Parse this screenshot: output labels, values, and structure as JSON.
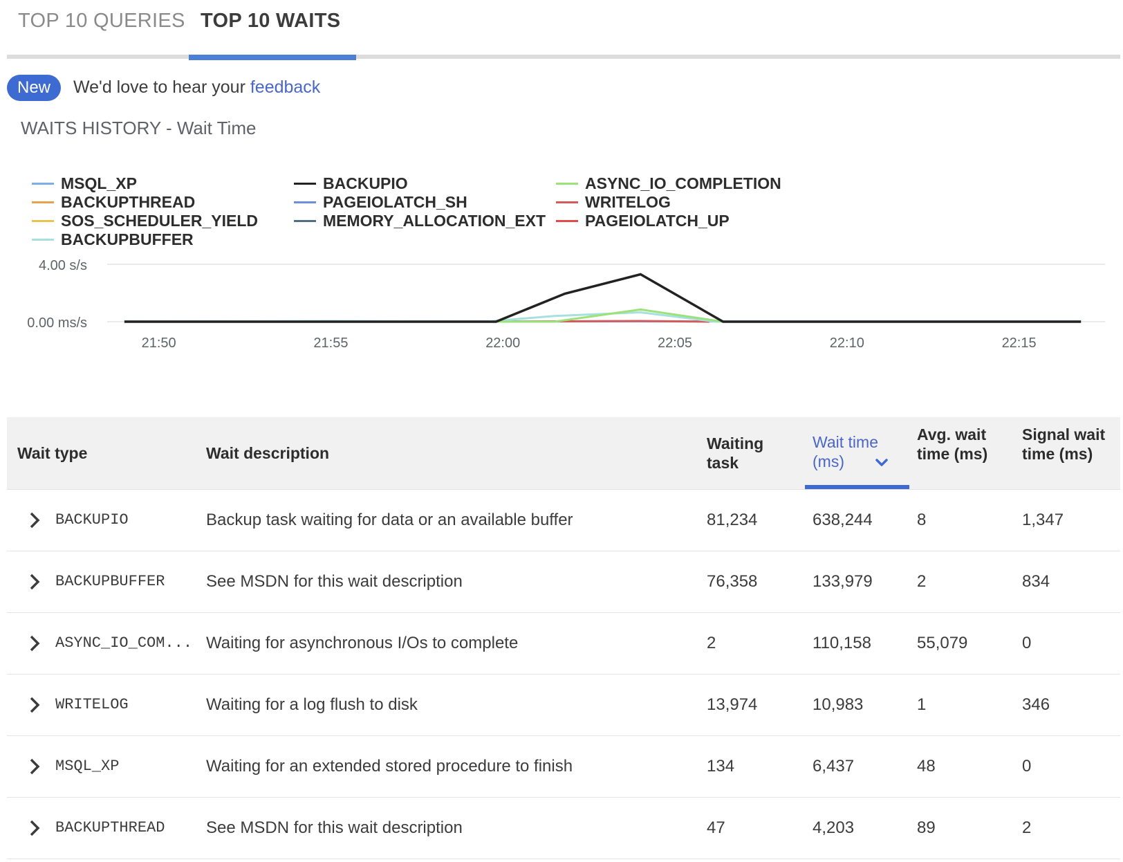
{
  "tabs": [
    {
      "label": "TOP 10 QUERIES"
    },
    {
      "label": "TOP 10 WAITS"
    }
  ],
  "banner": {
    "badge": "New",
    "text": "We'd love to hear your ",
    "link": "feedback"
  },
  "section_title": "WAITS HISTORY - Wait Time",
  "legend": [
    {
      "name": "MSQL_XP",
      "color": "#7baee8"
    },
    {
      "name": "BACKUPTHREAD",
      "color": "#e8a24f"
    },
    {
      "name": "SOS_SCHEDULER_YIELD",
      "color": "#e8c44f"
    },
    {
      "name": "BACKUPBUFFER",
      "color": "#a8e0de"
    },
    {
      "name": "BACKUPIO",
      "color": "#222222"
    },
    {
      "name": "PAGEIOLATCH_SH",
      "color": "#6a8ee0"
    },
    {
      "name": "MEMORY_ALLOCATION_EXT",
      "color": "#4f6f86"
    },
    {
      "name": "ASYNC_IO_COMPLETION",
      "color": "#9be27a"
    },
    {
      "name": "WRITELOG",
      "color": "#d25b5b"
    },
    {
      "name": "PAGEIOLATCH_UP",
      "color": "#e04a4a"
    }
  ],
  "chart_data": {
    "type": "line",
    "y_tick_labels": [
      "4.00 s/s",
      "0.00 ms/s"
    ],
    "ylim": [
      0,
      4
    ],
    "x_tick_labels": [
      "21:50",
      "21:55",
      "22:00",
      "22:05",
      "22:10",
      "22:15"
    ],
    "x_range_minutes": [
      -1.5,
      27.5
    ],
    "series": [
      {
        "name": "BACKUPIO",
        "color": "#222222",
        "points": [
          [
            -1.0,
            0
          ],
          [
            9.8,
            0
          ],
          [
            11.8,
            1.95
          ],
          [
            14.0,
            3.3
          ],
          [
            16.4,
            0
          ],
          [
            26.8,
            0
          ]
        ]
      },
      {
        "name": "ASYNC_IO_COMPLETION",
        "color": "#9be27a",
        "points": [
          [
            -1.0,
            0
          ],
          [
            11.5,
            0
          ],
          [
            14.0,
            0.85
          ],
          [
            16.4,
            0
          ],
          [
            26.8,
            0
          ]
        ]
      },
      {
        "name": "BACKUPBUFFER",
        "color": "#a8e0de",
        "points": [
          [
            -1.0,
            0
          ],
          [
            5.0,
            0.05
          ],
          [
            9.5,
            0
          ],
          [
            11.5,
            0.4
          ],
          [
            14.0,
            0.65
          ],
          [
            16.2,
            0
          ],
          [
            26.8,
            0
          ]
        ]
      },
      {
        "name": "WRITELOG",
        "color": "#d25b5b",
        "points": [
          [
            9.5,
            0
          ],
          [
            14.0,
            0.05
          ],
          [
            16.0,
            0
          ]
        ]
      },
      {
        "name": "MSQL_XP",
        "color": "#7baee8",
        "points": [
          [
            -1.0,
            0.02
          ],
          [
            26.8,
            0.02
          ]
        ]
      }
    ],
    "grid": true,
    "legend_position": "top-left"
  },
  "table": {
    "columns": [
      "Wait type",
      "Wait description",
      "Waiting task",
      "Wait time (ms)",
      "Avg. wait time (ms)",
      "Signal wait time (ms)"
    ],
    "column_lines": {
      "waiting_task": [
        "Waiting",
        "task"
      ],
      "wait_time": [
        "Wait time",
        "(ms)"
      ],
      "avg_wait": [
        "Avg. wait",
        "time (ms)"
      ],
      "signal_wait": [
        "Signal wait",
        "time (ms)"
      ]
    },
    "sorted_column": "Wait time (ms)",
    "rows": [
      {
        "type": "BACKUPIO",
        "desc": "Backup task waiting for data or an available buffer",
        "tasks": "81,234",
        "wait": "638,244",
        "avg": "8",
        "signal": "1,347"
      },
      {
        "type": "BACKUPBUFFER",
        "desc": "See MSDN for this wait description",
        "tasks": "76,358",
        "wait": "133,979",
        "avg": "2",
        "signal": "834"
      },
      {
        "type": "ASYNC_IO_COM...",
        "desc": "Waiting for asynchronous I/Os to complete",
        "tasks": "2",
        "wait": "110,158",
        "avg": "55,079",
        "signal": "0"
      },
      {
        "type": "WRITELOG",
        "desc": "Waiting for a log flush to disk",
        "tasks": "13,974",
        "wait": "10,983",
        "avg": "1",
        "signal": "346"
      },
      {
        "type": "MSQL_XP",
        "desc": "Waiting for an extended stored procedure to finish",
        "tasks": "134",
        "wait": "6,437",
        "avg": "48",
        "signal": "0"
      },
      {
        "type": "BACKUPTHREAD",
        "desc": "See MSDN for this wait description",
        "tasks": "47",
        "wait": "4,203",
        "avg": "89",
        "signal": "2"
      }
    ]
  }
}
